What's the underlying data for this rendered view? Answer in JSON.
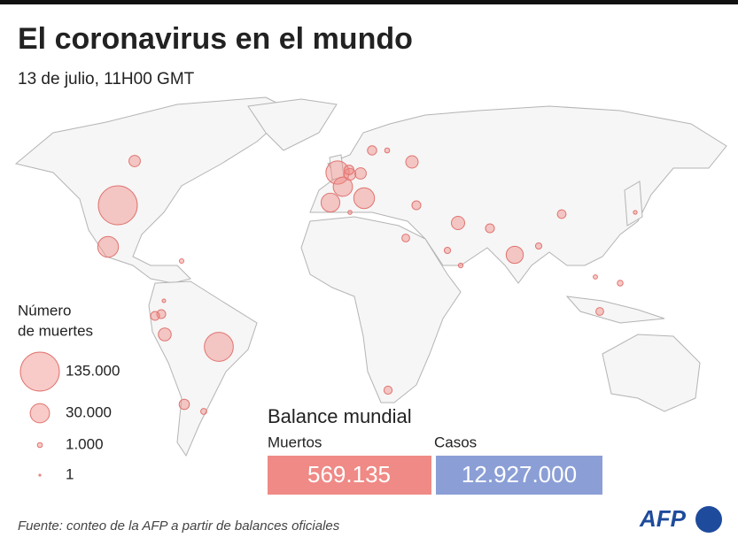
{
  "header": {
    "title": "El coronavirus en el mundo",
    "subtitle": "13 de julio, 11H00 GMT"
  },
  "legend": {
    "title_line1": "Número",
    "title_line2": "de muertes",
    "items": [
      {
        "value": 135000,
        "label": "135.000"
      },
      {
        "value": 30000,
        "label": "30.000"
      },
      {
        "value": 1000,
        "label": "1.000"
      },
      {
        "value": 1,
        "label": "1"
      }
    ]
  },
  "map_bubbles": [
    135000,
    35000,
    72000,
    45000,
    35000,
    30000,
    28000,
    23000,
    12000,
    13000,
    11000,
    7000,
    9000,
    9800,
    9000,
    5000,
    4000,
    5000,
    5500,
    6000,
    5000,
    3500,
    5000,
    2000,
    2000,
    4600,
    3500,
    1500,
    1800,
    1000,
    800,
    500,
    300,
    700,
    400,
    600
  ],
  "balance": {
    "title": "Balance mundial",
    "deaths_label": "Muertos",
    "deaths": "569.135",
    "cases_label": "Casos",
    "cases": "12.927.000"
  },
  "footer": {
    "source": "Fuente: conteo de la AFP a partir de balances oficiales",
    "logo": "AFP"
  }
}
